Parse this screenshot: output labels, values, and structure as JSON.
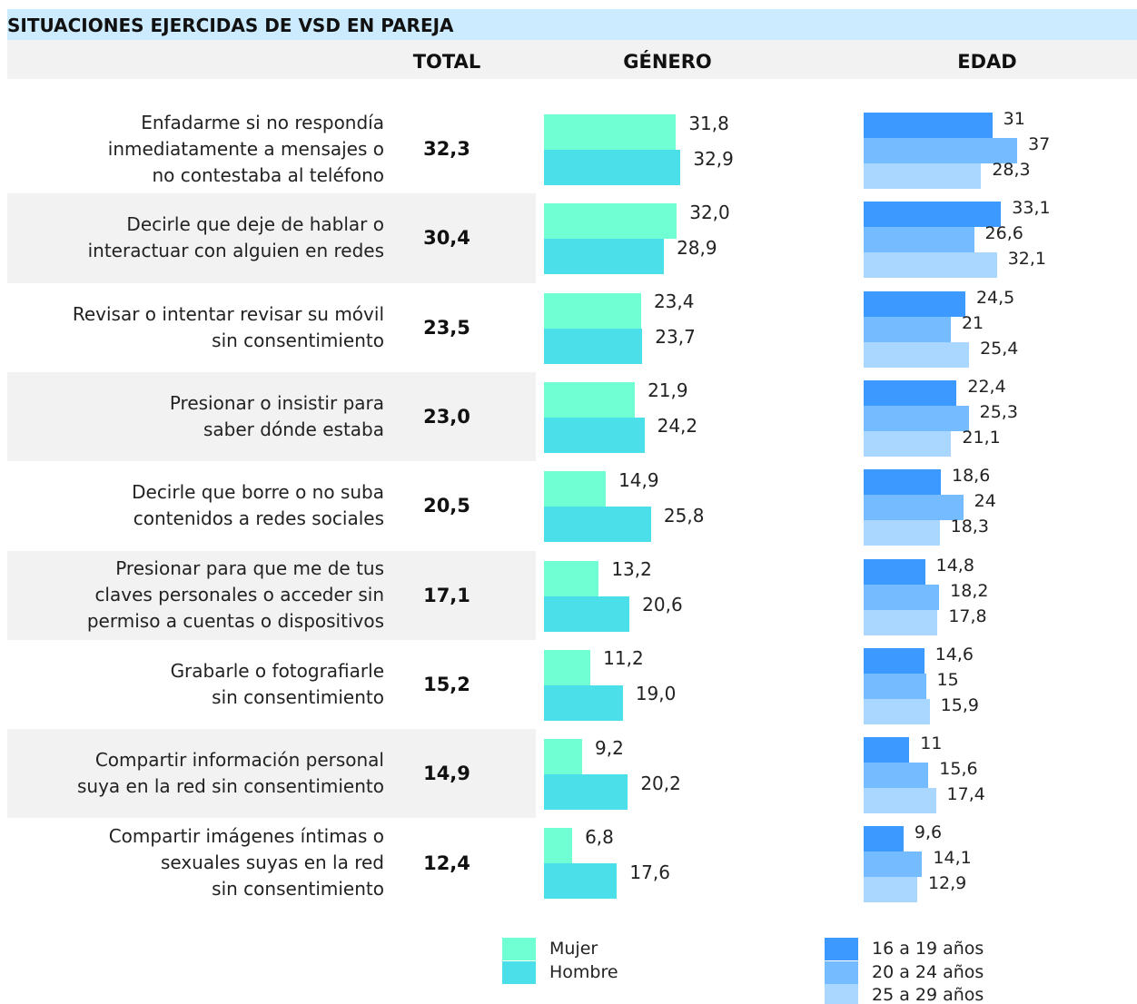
{
  "title": "SITUACIONES EJERCIDAS DE VSD EN PAREJA",
  "headers": {
    "total": "TOTAL"
  },
  "categories": [
    "Enfadarme si no respondía\ninmediatamente a mensajes o\nno contestaba al teléfono",
    "Decirle que deje de hablar o\ninteractuar con alguien en redes",
    "Revisar o intentar revisar su móvil\nsin consentimiento",
    "Presionar o insistir para\nsaber dónde estaba",
    "Decirle que borre o no suba\ncontenidos a redes sociales",
    "Presionar para que me de tus\nclaves personales o acceder sin\npermiso a cuentas o dispositivos",
    "Grabarle o fotografiarle\nsin consentimiento",
    "Compartir información personal\nsuya en la red sin consentimiento",
    "Compartir imágenes íntimas o\nsexuales suyas en la red\nsin consentimiento"
  ],
  "totals": {
    "values": [
      32.3,
      30.4,
      23.5,
      23.0,
      20.5,
      17.1,
      15.2,
      14.9,
      12.4
    ],
    "value_labels": [
      "32,3",
      "30,4",
      "23,5",
      "23,0",
      "20,5",
      "17,1",
      "15,2",
      "14,9",
      "12,4"
    ]
  },
  "chart_data": [
    {
      "type": "bar",
      "title": "GÉNERO",
      "series": [
        {
          "name": "Mujer",
          "color": "#6fffd3",
          "values": [
            31.8,
            32.0,
            23.4,
            21.9,
            14.9,
            13.2,
            11.2,
            9.2,
            6.8
          ],
          "value_labels": [
            "31,8",
            "32,0",
            "23,4",
            "21,9",
            "14,9",
            "13,2",
            "11,2",
            "9,2",
            "6,8"
          ]
        },
        {
          "name": "Hombre",
          "color": "#4adfe9",
          "values": [
            32.9,
            28.9,
            23.7,
            24.2,
            25.8,
            20.6,
            19.0,
            20.2,
            17.6
          ],
          "value_labels": [
            "32,9",
            "28,9",
            "23,7",
            "24,2",
            "25,8",
            "20,6",
            "19,0",
            "20,2",
            "17,6"
          ]
        }
      ]
    },
    {
      "type": "bar",
      "title": "EDAD",
      "series": [
        {
          "name": "16 a 19 años",
          "color": "#3b99ff",
          "values": [
            31,
            33.1,
            24.5,
            22.4,
            18.6,
            14.8,
            14.6,
            11,
            9.6
          ],
          "value_labels": [
            "31",
            "33,1",
            "24,5",
            "22,4",
            "18,6",
            "14,8",
            "14,6",
            "11",
            "9,6"
          ]
        },
        {
          "name": "20 a 24 años",
          "color": "#74bcff",
          "values": [
            37,
            26.6,
            21,
            25.3,
            24,
            18.2,
            15,
            15.6,
            14.1
          ],
          "value_labels": [
            "37",
            "26,6",
            "21",
            "25,3",
            "24",
            "18,2",
            "15",
            "15,6",
            "14,1"
          ]
        },
        {
          "name": "25 a 29 años",
          "color": "#aad7ff",
          "values": [
            28.3,
            32.1,
            25.4,
            21.1,
            18.3,
            17.8,
            15.9,
            17.4,
            12.9
          ],
          "value_labels": [
            "28,3",
            "32,1",
            "25,4",
            "21,1",
            "18,3",
            "17,8",
            "15,9",
            "17,4",
            "12,9"
          ]
        }
      ]
    }
  ]
}
